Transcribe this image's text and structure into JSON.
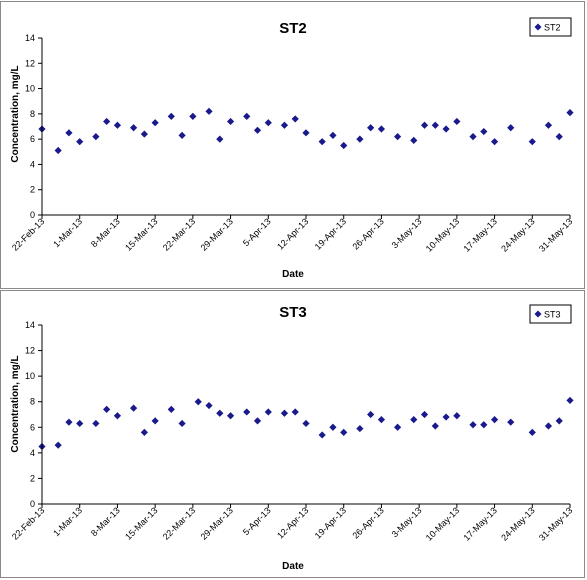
{
  "chart_data": [
    {
      "type": "scatter",
      "title": "ST2",
      "xlabel": "Date",
      "ylabel": "Concentration, mg/L",
      "ylim": [
        0,
        14
      ],
      "yticks": [
        "0",
        "2",
        "4",
        "6",
        "8",
        "10",
        "12",
        "14"
      ],
      "xlim": [
        "2013-02-22",
        "2013-05-31"
      ],
      "xticks": [
        {
          "date": "2013-02-22",
          "label": "22-Feb-13"
        },
        {
          "date": "2013-03-01",
          "label": "1-Mar-13"
        },
        {
          "date": "2013-03-08",
          "label": "8-Mar-13"
        },
        {
          "date": "2013-03-15",
          "label": "15-Mar-13"
        },
        {
          "date": "2013-03-22",
          "label": "22-Mar-13"
        },
        {
          "date": "2013-03-29",
          "label": "29-Mar-13"
        },
        {
          "date": "2013-04-05",
          "label": "5-Apr-13"
        },
        {
          "date": "2013-04-12",
          "label": "12-Apr-13"
        },
        {
          "date": "2013-04-19",
          "label": "19-Apr-13"
        },
        {
          "date": "2013-04-26",
          "label": "26-Apr-13"
        },
        {
          "date": "2013-05-03",
          "label": "3-May-13"
        },
        {
          "date": "2013-05-10",
          "label": "10-May-13"
        },
        {
          "date": "2013-05-17",
          "label": "17-May-13"
        },
        {
          "date": "2013-05-24",
          "label": "24-May-13"
        },
        {
          "date": "2013-05-31",
          "label": "31-May-13"
        }
      ],
      "legend": "top-right",
      "grid": false,
      "marker_color": "#1a1a8c",
      "series": [
        {
          "name": "ST2",
          "points": [
            {
              "x": "2013-02-22",
              "y": 6.8
            },
            {
              "x": "2013-02-25",
              "y": 5.1
            },
            {
              "x": "2013-02-27",
              "y": 6.5
            },
            {
              "x": "2013-03-01",
              "y": 5.8
            },
            {
              "x": "2013-03-04",
              "y": 6.2
            },
            {
              "x": "2013-03-06",
              "y": 7.4
            },
            {
              "x": "2013-03-08",
              "y": 7.1
            },
            {
              "x": "2013-03-11",
              "y": 6.9
            },
            {
              "x": "2013-03-13",
              "y": 6.4
            },
            {
              "x": "2013-03-15",
              "y": 7.3
            },
            {
              "x": "2013-03-18",
              "y": 7.8
            },
            {
              "x": "2013-03-20",
              "y": 6.3
            },
            {
              "x": "2013-03-22",
              "y": 7.8
            },
            {
              "x": "2013-03-25",
              "y": 8.2
            },
            {
              "x": "2013-03-27",
              "y": 6.0
            },
            {
              "x": "2013-03-29",
              "y": 7.4
            },
            {
              "x": "2013-04-01",
              "y": 7.8
            },
            {
              "x": "2013-04-03",
              "y": 6.7
            },
            {
              "x": "2013-04-05",
              "y": 7.3
            },
            {
              "x": "2013-04-08",
              "y": 7.1
            },
            {
              "x": "2013-04-10",
              "y": 7.6
            },
            {
              "x": "2013-04-12",
              "y": 6.5
            },
            {
              "x": "2013-04-15",
              "y": 5.8
            },
            {
              "x": "2013-04-17",
              "y": 6.3
            },
            {
              "x": "2013-04-19",
              "y": 5.5
            },
            {
              "x": "2013-04-22",
              "y": 6.0
            },
            {
              "x": "2013-04-24",
              "y": 6.9
            },
            {
              "x": "2013-04-26",
              "y": 6.8
            },
            {
              "x": "2013-04-29",
              "y": 6.2
            },
            {
              "x": "2013-05-02",
              "y": 5.9
            },
            {
              "x": "2013-05-04",
              "y": 7.1
            },
            {
              "x": "2013-05-06",
              "y": 7.1
            },
            {
              "x": "2013-05-08",
              "y": 6.8
            },
            {
              "x": "2013-05-10",
              "y": 7.4
            },
            {
              "x": "2013-05-13",
              "y": 6.2
            },
            {
              "x": "2013-05-15",
              "y": 6.6
            },
            {
              "x": "2013-05-17",
              "y": 5.8
            },
            {
              "x": "2013-05-20",
              "y": 6.9
            },
            {
              "x": "2013-05-24",
              "y": 5.8
            },
            {
              "x": "2013-05-27",
              "y": 7.1
            },
            {
              "x": "2013-05-29",
              "y": 6.2
            },
            {
              "x": "2013-05-31",
              "y": 8.1
            }
          ]
        }
      ]
    },
    {
      "type": "scatter",
      "title": "ST3",
      "xlabel": "Date",
      "ylabel": "Concentration, mg/L",
      "ylim": [
        0,
        14
      ],
      "yticks": [
        "0",
        "2",
        "4",
        "6",
        "8",
        "10",
        "12",
        "14"
      ],
      "xlim": [
        "2013-02-22",
        "2013-05-31"
      ],
      "xticks": [
        {
          "date": "2013-02-22",
          "label": "22-Feb-13"
        },
        {
          "date": "2013-03-01",
          "label": "1-Mar-13"
        },
        {
          "date": "2013-03-08",
          "label": "8-Mar-13"
        },
        {
          "date": "2013-03-15",
          "label": "15-Mar-13"
        },
        {
          "date": "2013-03-22",
          "label": "22-Mar-13"
        },
        {
          "date": "2013-03-29",
          "label": "29-Mar-13"
        },
        {
          "date": "2013-04-05",
          "label": "5-Apr-13"
        },
        {
          "date": "2013-04-12",
          "label": "12-Apr-13"
        },
        {
          "date": "2013-04-19",
          "label": "19-Apr-13"
        },
        {
          "date": "2013-04-26",
          "label": "26-Apr-13"
        },
        {
          "date": "2013-05-03",
          "label": "3-May-13"
        },
        {
          "date": "2013-05-10",
          "label": "10-May-13"
        },
        {
          "date": "2013-05-17",
          "label": "17-May-13"
        },
        {
          "date": "2013-05-24",
          "label": "24-May-13"
        },
        {
          "date": "2013-05-31",
          "label": "31-May-13"
        }
      ],
      "legend": "top-right",
      "grid": false,
      "marker_color": "#1a1a8c",
      "series": [
        {
          "name": "ST3",
          "points": [
            {
              "x": "2013-02-22",
              "y": 4.5
            },
            {
              "x": "2013-02-25",
              "y": 4.6
            },
            {
              "x": "2013-02-27",
              "y": 6.4
            },
            {
              "x": "2013-03-01",
              "y": 6.3
            },
            {
              "x": "2013-03-04",
              "y": 6.3
            },
            {
              "x": "2013-03-06",
              "y": 7.4
            },
            {
              "x": "2013-03-08",
              "y": 6.9
            },
            {
              "x": "2013-03-11",
              "y": 7.5
            },
            {
              "x": "2013-03-13",
              "y": 5.6
            },
            {
              "x": "2013-03-15",
              "y": 6.5
            },
            {
              "x": "2013-03-18",
              "y": 7.4
            },
            {
              "x": "2013-03-20",
              "y": 6.3
            },
            {
              "x": "2013-03-23",
              "y": 8.0
            },
            {
              "x": "2013-03-25",
              "y": 7.7
            },
            {
              "x": "2013-03-27",
              "y": 7.1
            },
            {
              "x": "2013-03-29",
              "y": 6.9
            },
            {
              "x": "2013-04-01",
              "y": 7.2
            },
            {
              "x": "2013-04-03",
              "y": 6.5
            },
            {
              "x": "2013-04-05",
              "y": 7.2
            },
            {
              "x": "2013-04-08",
              "y": 7.1
            },
            {
              "x": "2013-04-10",
              "y": 7.2
            },
            {
              "x": "2013-04-12",
              "y": 6.3
            },
            {
              "x": "2013-04-15",
              "y": 5.4
            },
            {
              "x": "2013-04-17",
              "y": 6.0
            },
            {
              "x": "2013-04-19",
              "y": 5.6
            },
            {
              "x": "2013-04-22",
              "y": 5.9
            },
            {
              "x": "2013-04-24",
              "y": 7.0
            },
            {
              "x": "2013-04-26",
              "y": 6.6
            },
            {
              "x": "2013-04-29",
              "y": 6.0
            },
            {
              "x": "2013-05-02",
              "y": 6.6
            },
            {
              "x": "2013-05-04",
              "y": 7.0
            },
            {
              "x": "2013-05-06",
              "y": 6.1
            },
            {
              "x": "2013-05-08",
              "y": 6.8
            },
            {
              "x": "2013-05-10",
              "y": 6.9
            },
            {
              "x": "2013-05-13",
              "y": 6.2
            },
            {
              "x": "2013-05-15",
              "y": 6.2
            },
            {
              "x": "2013-05-17",
              "y": 6.6
            },
            {
              "x": "2013-05-20",
              "y": 6.4
            },
            {
              "x": "2013-05-24",
              "y": 5.6
            },
            {
              "x": "2013-05-27",
              "y": 6.1
            },
            {
              "x": "2013-05-29",
              "y": 6.5
            },
            {
              "x": "2013-05-31",
              "y": 8.1
            }
          ]
        }
      ]
    }
  ]
}
